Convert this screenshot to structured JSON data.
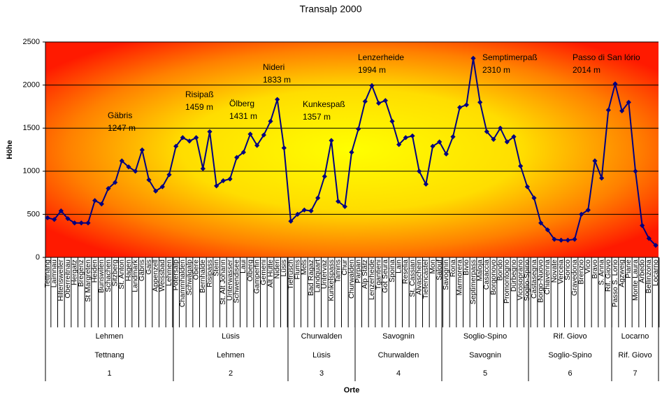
{
  "chart_data": {
    "type": "line",
    "title": "Transalp 2000",
    "x_label": "Orte",
    "y_label": "Höhe",
    "categories": [
      "Tettnang",
      "Laimnau",
      "Hiltensweiler",
      "Oberreitnau",
      "Hergatz",
      "Bregenz",
      "St Margreten",
      "Heiden",
      "Bunswilen",
      "Schachen",
      "Sitzberg",
      "St. Anton",
      "Hagen",
      "Landmark",
      "Gäbris",
      "Gais",
      "Appenzell",
      "Weissbad",
      "Lehmen",
      "Potersalp",
      "Chammhalden",
      "Schwägalp",
      "Obere",
      "Bernhalde",
      "Risipass",
      "Stein",
      "St. Alt Johann",
      "Unterwasser",
      "Schwendisee",
      "Laui",
      "Ölberg",
      "Gamperfin",
      "Gemeni",
      "Alt Hütte",
      "Nideri",
      "Lüsis",
      "Tiefrüsch",
      "Flums",
      "Mels",
      "Bad Ragaz",
      "Landquart",
      "Untervaz",
      "Kunkelspass",
      "Tamins",
      "Chur",
      "Churwalden",
      "Parpan",
      "Alp Stätz",
      "Lenzerheide",
      "Tgantieni",
      "Got Seura",
      "Spoina",
      "Lain",
      "Reselia",
      "St. Cassian",
      "Alvaschein",
      "Tiefencastel",
      "Mon",
      "Salouf",
      "Savognin",
      "Rona",
      "Marmorera",
      "Bivio",
      "Septimerpass",
      "Maloja",
      "Casaccia",
      "Borgonovo",
      "Bondo",
      "Promontogno",
      "Dürbegno",
      "Vicosoprano",
      "Soglio-Spino",
      "Castasegna",
      "Borgo-Nuovo",
      "Chiavenna",
      "Novate",
      "Verceia",
      "Sorico",
      "Gravedona",
      "Brenzio",
      "Vico",
      "Bravo",
      "S. Anna",
      "Rif. Giovo",
      "Passo S. Lorio",
      "Agzweig",
      "Piane",
      "Monte Laura",
      "Arbedo",
      "Bellinzona",
      "Locarno"
    ],
    "series": [
      {
        "name": "Höhe",
        "color": "#000080",
        "values": [
          460,
          440,
          540,
          450,
          400,
          400,
          400,
          660,
          620,
          800,
          870,
          1120,
          1050,
          1000,
          1247,
          900,
          770,
          820,
          960,
          1290,
          1390,
          1350,
          1390,
          1030,
          1459,
          830,
          890,
          910,
          1160,
          1220,
          1431,
          1300,
          1420,
          1580,
          1833,
          1270,
          420,
          500,
          550,
          540,
          690,
          940,
          1357,
          650,
          590,
          1220,
          1490,
          1810,
          1994,
          1790,
          1820,
          1580,
          1310,
          1390,
          1410,
          1000,
          850,
          1290,
          1340,
          1200,
          1400,
          1740,
          1770,
          2310,
          1800,
          1460,
          1370,
          1500,
          1340,
          1400,
          1060,
          820,
          690,
          400,
          320,
          210,
          200,
          200,
          210,
          500,
          550,
          1120,
          920,
          1710,
          2014,
          1700,
          1800,
          1000,
          370,
          220,
          140
        ]
      }
    ],
    "ylim": [
      0,
      2500
    ],
    "yticks": [
      0,
      500,
      1000,
      1500,
      2000,
      2500
    ],
    "grid": true,
    "annotations": [
      {
        "name": "Gäbris",
        "label": "1247 m"
      },
      {
        "name": "Risipaß",
        "label": "1459 m"
      },
      {
        "name": "Ölberg",
        "label": "1431 m"
      },
      {
        "name": "Nideri",
        "label": "1833 m"
      },
      {
        "name": "Kunkespaß",
        "label": "1357 m"
      },
      {
        "name": "Lenzerheide",
        "label": "1994 m"
      },
      {
        "name": "Semptimerpaß",
        "label": "2310 m"
      },
      {
        "name": "Passo di San lório",
        "label": "2014 m"
      }
    ],
    "stages": [
      {
        "to": "Lehmen",
        "from": "Tettnang",
        "number": "1"
      },
      {
        "to": "Lüsis",
        "from": "Lehmen",
        "number": "2"
      },
      {
        "to": "Churwalden",
        "from": "Lüsis",
        "number": "3"
      },
      {
        "to": "Savognin",
        "from": "Churwalden",
        "number": "4"
      },
      {
        "to": "Soglio-Spino",
        "from": "Savognin",
        "number": "5"
      },
      {
        "to": "Rif. Giovo",
        "from": "Soglio-Spino",
        "number": "6"
      },
      {
        "to": "Locarno",
        "from": "Rif. Giovo",
        "number": "7"
      }
    ]
  }
}
